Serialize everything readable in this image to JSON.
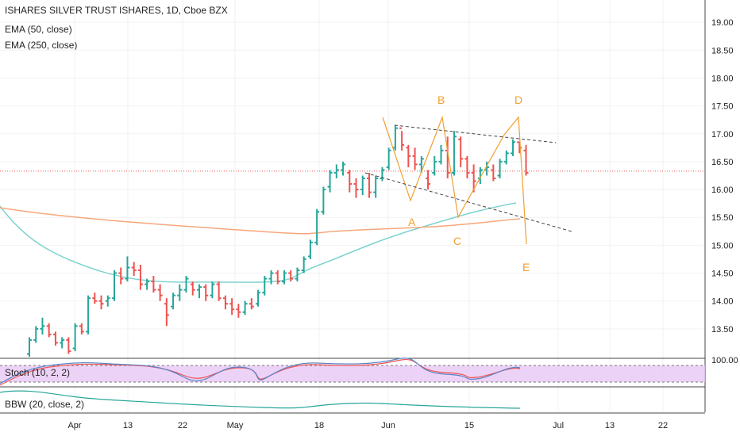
{
  "header": {
    "symbol_line": "ISHARES SILVER TRUST ISHARES, 1D, Cboe BZX",
    "ema_short": "EMA (50, close)",
    "ema_long": "EMA (250, close)"
  },
  "indicators": {
    "stoch_label": "Stoch (10, 2, 2)",
    "stoch_max_label": "100.00",
    "bbw_label": "BBW (20, close, 2)"
  },
  "colors": {
    "up": "#26a69a",
    "down": "#ef5350",
    "ema50": "#7fd3d0",
    "ema250": "#f7a77c",
    "pattern": "#f0a030",
    "price_line": "#ef5350",
    "stoch_band": "#e9c7f5"
  },
  "chart_data": {
    "type": "ohlc",
    "y_axis_ticks": [
      "19.00",
      "18.50",
      "18.00",
      "17.50",
      "17.00",
      "16.50",
      "16.00",
      "15.50",
      "15.00",
      "14.50",
      "14.00",
      "13.50"
    ],
    "x_axis_ticks": [
      "Apr",
      "13",
      "22",
      "May",
      "18",
      "Jun",
      "15",
      "Jul",
      "13",
      "22"
    ],
    "ylim": [
      13.0,
      19.4
    ],
    "last_price_line": 16.33,
    "bars": [
      [
        13.05,
        13.35,
        13.0,
        13.3
      ],
      [
        13.3,
        13.55,
        13.25,
        13.5
      ],
      [
        13.5,
        13.7,
        13.4,
        13.55
      ],
      [
        13.55,
        13.6,
        13.35,
        13.4
      ],
      [
        13.4,
        13.45,
        13.2,
        13.25
      ],
      [
        13.25,
        13.35,
        13.15,
        13.3
      ],
      [
        13.3,
        13.35,
        13.05,
        13.1
      ],
      [
        13.15,
        13.6,
        13.1,
        13.55
      ],
      [
        13.55,
        13.6,
        13.4,
        13.45
      ],
      [
        13.45,
        14.1,
        13.4,
        14.05
      ],
      [
        14.05,
        14.15,
        13.95,
        14.0
      ],
      [
        14.0,
        14.1,
        13.85,
        13.95
      ],
      [
        14.0,
        14.1,
        13.9,
        14.05
      ],
      [
        14.05,
        14.55,
        14.0,
        14.5
      ],
      [
        14.5,
        14.6,
        14.3,
        14.4
      ],
      [
        14.4,
        14.8,
        14.35,
        14.6
      ],
      [
        14.6,
        14.7,
        14.45,
        14.55
      ],
      [
        14.55,
        14.65,
        14.2,
        14.3
      ],
      [
        14.3,
        14.4,
        14.2,
        14.35
      ],
      [
        14.35,
        14.45,
        14.15,
        14.2
      ],
      [
        14.2,
        14.3,
        14.0,
        14.1
      ],
      [
        13.95,
        14.05,
        13.55,
        13.75
      ],
      [
        13.9,
        14.15,
        13.85,
        14.1
      ],
      [
        14.1,
        14.3,
        14.0,
        14.2
      ],
      [
        14.2,
        14.45,
        14.15,
        14.4
      ],
      [
        14.3,
        14.35,
        14.1,
        14.2
      ],
      [
        14.2,
        14.3,
        14.05,
        14.25
      ],
      [
        14.25,
        14.3,
        14.0,
        14.1
      ],
      [
        14.1,
        14.35,
        14.05,
        14.3
      ],
      [
        14.3,
        14.35,
        14.0,
        14.05
      ],
      [
        14.05,
        14.1,
        13.85,
        13.95
      ],
      [
        13.95,
        14.05,
        13.75,
        13.85
      ],
      [
        13.85,
        13.95,
        13.7,
        13.8
      ],
      [
        13.8,
        14.0,
        13.75,
        13.95
      ],
      [
        13.95,
        14.05,
        13.85,
        13.9
      ],
      [
        13.95,
        14.2,
        13.9,
        14.15
      ],
      [
        14.15,
        14.45,
        14.1,
        14.4
      ],
      [
        14.4,
        14.55,
        14.3,
        14.5
      ],
      [
        14.5,
        14.55,
        14.3,
        14.35
      ],
      [
        14.35,
        14.55,
        14.3,
        14.5
      ],
      [
        14.5,
        14.55,
        14.35,
        14.4
      ],
      [
        14.4,
        14.6,
        14.35,
        14.55
      ],
      [
        14.55,
        14.8,
        14.5,
        14.75
      ],
      [
        14.8,
        15.1,
        14.75,
        15.05
      ],
      [
        15.05,
        15.65,
        15.0,
        15.6
      ],
      [
        15.6,
        16.05,
        15.55,
        16.0
      ],
      [
        16.05,
        16.35,
        15.95,
        16.3
      ],
      [
        16.3,
        16.45,
        16.2,
        16.35
      ],
      [
        16.35,
        16.5,
        16.25,
        16.45
      ],
      [
        16.3,
        16.35,
        15.95,
        16.1
      ],
      [
        16.1,
        16.2,
        15.85,
        16.0
      ],
      [
        16.0,
        16.25,
        15.9,
        16.2
      ],
      [
        16.2,
        16.3,
        15.85,
        15.95
      ],
      [
        15.95,
        16.25,
        15.85,
        16.2
      ],
      [
        16.2,
        16.4,
        16.15,
        16.35
      ],
      [
        16.4,
        16.75,
        16.35,
        16.7
      ],
      [
        16.75,
        17.15,
        16.7,
        17.1
      ],
      [
        17.1,
        17.05,
        16.7,
        16.8
      ],
      [
        16.75,
        16.8,
        16.4,
        16.6
      ],
      [
        16.6,
        16.75,
        16.35,
        16.45
      ],
      [
        16.45,
        16.6,
        16.3,
        16.55
      ],
      [
        16.2,
        16.35,
        16.0,
        16.1
      ],
      [
        16.3,
        16.6,
        16.25,
        16.5
      ],
      [
        16.5,
        16.8,
        16.45,
        16.7
      ],
      [
        16.7,
        16.95,
        16.2,
        16.3
      ],
      [
        16.3,
        17.05,
        16.25,
        16.95
      ],
      [
        16.9,
        16.95,
        16.4,
        16.55
      ],
      [
        16.55,
        16.6,
        16.2,
        16.3
      ],
      [
        16.3,
        16.45,
        15.95,
        16.15
      ],
      [
        16.2,
        16.4,
        16.1,
        16.35
      ],
      [
        16.35,
        16.5,
        16.25,
        16.4
      ],
      [
        16.35,
        16.45,
        16.15,
        16.2
      ],
      [
        16.25,
        16.55,
        16.2,
        16.5
      ],
      [
        16.5,
        16.7,
        16.45,
        16.65
      ],
      [
        16.65,
        16.9,
        16.6,
        16.85
      ],
      [
        16.85,
        16.85,
        16.65,
        16.75
      ],
      [
        16.7,
        16.8,
        16.25,
        16.3
      ]
    ],
    "pattern_labels": [
      "A",
      "B",
      "C",
      "D",
      "E"
    ]
  }
}
